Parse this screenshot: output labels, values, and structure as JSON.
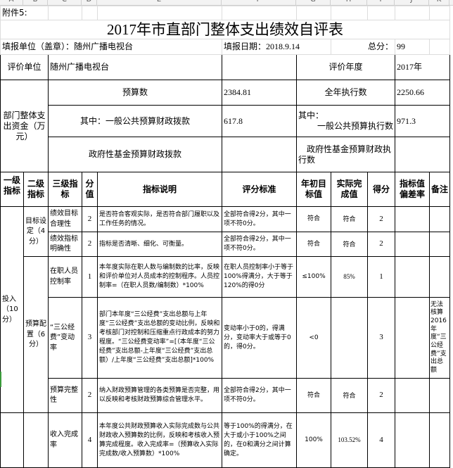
{
  "column_letters": [
    "A",
    "B",
    "C",
    "D",
    "E",
    "F",
    "G",
    "H",
    "I",
    "J",
    "K"
  ],
  "attachment": "附件5:",
  "title": "2017年市直部门整体支出绩效自评表",
  "fill_unit_label": "填报单位（盖章）：随州广播电视台",
  "fill_date_label": "填报日期：",
  "fill_date": "2018.9.14",
  "total_score_label": "总分：",
  "total_score": "99",
  "eval_unit_label": "评价单位",
  "eval_unit": "随州广播电视台",
  "eval_year_label": "评价年度",
  "eval_year": "2017年",
  "funds_label": "部门整体支出资金（万元）",
  "budget_label": "预算数",
  "budget": "2384.81",
  "exec_label": "全年执行数",
  "exec": "2250.66",
  "general_budget_label": "其中：一般公共预算财政拨款",
  "general_budget": "617.8",
  "general_exec_label1": "其中：",
  "general_exec_label2": "一般公共预算执行数",
  "general_exec": "971.3",
  "gov_fund_label": "政府性基金预算财政拨款",
  "gov_fund": "",
  "gov_fund_exec_label": "政府性基金预算财政执行数",
  "gov_fund_exec": "",
  "headers": [
    "一级指标",
    "二级指标",
    "三级指标",
    "分值",
    "指标说明",
    "评分标准",
    "年初目标值",
    "实际完成值",
    "得分",
    "指标值偏差率",
    "备注"
  ],
  "level1": [
    {
      "label": "投入（10分）"
    }
  ],
  "level2": [
    {
      "label": "目标设定（4分）"
    },
    {
      "label": "预算配置（6分）"
    }
  ],
  "rows": [
    {
      "l3": "绩效目标合理性",
      "score_value": "2",
      "desc": "是否符合客观实际，是否符合部门履职以及工作任务的情况。",
      "criteria": "全部符合得2分，其中一项不符0分。",
      "target": "符合",
      "actual": "符合",
      "score": "2",
      "deviation": "",
      "note": ""
    },
    {
      "l3": "绩效指标明确性",
      "score_value": "2",
      "desc": "指标是否清晰、细化、可衡量。",
      "criteria": "全部符合得2分，其中一项不符0分。",
      "target": "符合",
      "actual": "符合",
      "score": "2",
      "deviation": "",
      "note": ""
    },
    {
      "l3": "在职人员控制率",
      "score_value": "1",
      "desc": "本年度实际在职人数与编制数的比率，反映和评价单位对人员成本的控制程序。人员控制率=（在职人员数/编制数）*100%",
      "criteria": "在职人员控制率小于等于100%得满分，大于等于120%的得0分",
      "target": "≤100%",
      "actual": "85%",
      "score": "1",
      "deviation": "",
      "note": ""
    },
    {
      "l3": "“三公经费”变动率",
      "score_value": "3",
      "desc": "部门本年度“三公经费”支出总额与上年度“三公经费”支出总额的变动比例，反映和考核部门对控制和压缩重点行政成本的努力程度。“三公经费变动率”=[（本年度“三公经费”支出总额-上年度“三公经费”支出总额）/上年度“三公经费”支出总额]*100%",
      "criteria": "变动率小于0的，得满分，变动率大于或等于0的，得0分。",
      "target": "<0",
      "actual": "",
      "score": "3",
      "deviation": "",
      "note": "无法核算2016年度“三公经费”支出总额"
    },
    {
      "l3": "预算完整性",
      "score_value": "2",
      "desc": "纳入财政预算管理的各类预算是否完整，用以反映和考核财政预算综合管理水平。",
      "criteria": "全部符合得2分，其中一项不符0分。",
      "target": "符合",
      "actual": "符合",
      "score": "2",
      "deviation": "",
      "note": ""
    },
    {
      "l3": "收入完成率",
      "score_value": "4",
      "desc": "本年度公共财政预算收入实际完成数与公共财政收入预算数的比例，反映和考核收入预算完成程度。收入完成率=（预算收入实际完成数/收入预算数）*100%",
      "criteria": "等于100%的得满分，在大于或小于100%之间的，在0和满分之间计算确定。",
      "target": "100%",
      "actual": "103.52%",
      "score": "4",
      "deviation": "",
      "note": ""
    }
  ]
}
